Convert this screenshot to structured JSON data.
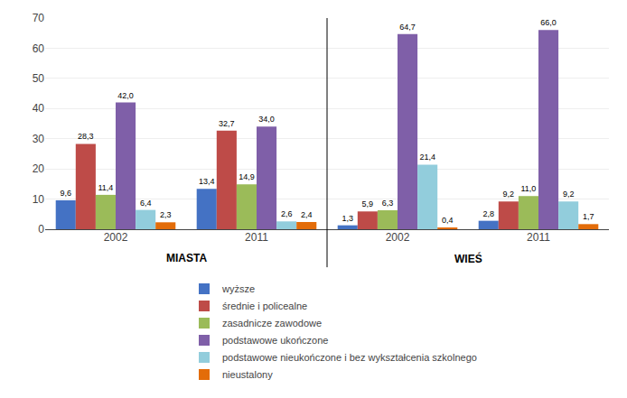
{
  "chart_data": {
    "type": "bar",
    "categories": [
      "2002",
      "2011",
      "2002",
      "2011"
    ],
    "series": [
      {
        "name": "wyższe",
        "color": "#4472C4",
        "values": [
          9.6,
          13.4,
          1.3,
          2.8
        ],
        "value_labels": [
          "9,6",
          "13,4",
          "1,3",
          "2,8"
        ]
      },
      {
        "name": "średnie i policealne",
        "color": "#BE4B48",
        "values": [
          28.3,
          32.7,
          5.9,
          9.2
        ],
        "value_labels": [
          "28,3",
          "32,7",
          "5,9",
          "9,2"
        ]
      },
      {
        "name": "zasadnicze zawodowe",
        "color": "#9BBB59",
        "values": [
          11.4,
          14.9,
          6.3,
          11.0
        ],
        "value_labels": [
          "11,4",
          "14,9",
          "6,3",
          "11,0"
        ]
      },
      {
        "name": "podstawowe ukończone",
        "color": "#7F5FA8",
        "values": [
          42.0,
          34.0,
          64.7,
          66.0
        ],
        "value_labels": [
          "42,0",
          "34,0",
          "64,7",
          "66,0"
        ]
      },
      {
        "name": "podstawowe nieukończone i bez wykształcenia szkolnego",
        "color": "#92CDDC",
        "values": [
          6.4,
          2.6,
          21.4,
          9.2
        ],
        "value_labels": [
          "6,4",
          "2,6",
          "21,4",
          "9,2"
        ]
      },
      {
        "name": "nieustalony",
        "color": "#E36C09",
        "values": [
          2.3,
          2.4,
          0.4,
          1.7
        ],
        "value_labels": [
          "2,3",
          "2,4",
          "0,4",
          "1,7"
        ]
      }
    ],
    "annotations": [
      {
        "text": "MIASTA"
      },
      {
        "text": "WIEŚ"
      }
    ],
    "ylim": [
      0,
      70
    ],
    "yticks": [
      0,
      10,
      20,
      30,
      40,
      50,
      60,
      70
    ],
    "grid": true,
    "data_labels": true,
    "legend": "bottom"
  }
}
